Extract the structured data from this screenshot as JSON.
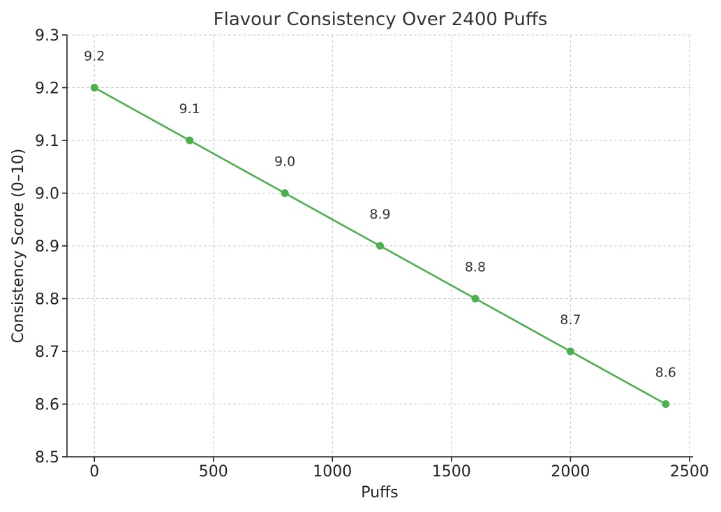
{
  "chart_data": {
    "type": "line",
    "title": "Flavour Consistency Over 2400 Puffs",
    "xlabel": "Puffs",
    "ylabel": "Consistency Score (0–10)",
    "x": [
      0,
      400,
      800,
      1200,
      1600,
      2000,
      2400
    ],
    "series": [
      {
        "values": [
          9.2,
          9.1,
          9.0,
          8.9,
          8.8,
          8.7,
          8.6
        ],
        "data_labels": [
          "9.2",
          "9.1",
          "9.0",
          "8.9",
          "8.8",
          "8.7",
          "8.6"
        ],
        "color": "#4caf50"
      }
    ],
    "xlim": [
      -115,
      2515
    ],
    "ylim": [
      8.5,
      9.3
    ],
    "xticks": [
      0,
      500,
      1000,
      1500,
      2000,
      2500
    ],
    "xtick_labels": [
      "0",
      "500",
      "1000",
      "1500",
      "2000",
      "2500"
    ],
    "yticks": [
      8.5,
      8.6,
      8.7,
      8.8,
      8.9,
      9.0,
      9.1,
      9.2,
      9.3
    ],
    "ytick_labels": [
      "8.5",
      "8.6",
      "8.7",
      "8.8",
      "8.9",
      "9.0",
      "9.1",
      "9.2",
      "9.3"
    ],
    "grid": true,
    "legend": "none"
  }
}
